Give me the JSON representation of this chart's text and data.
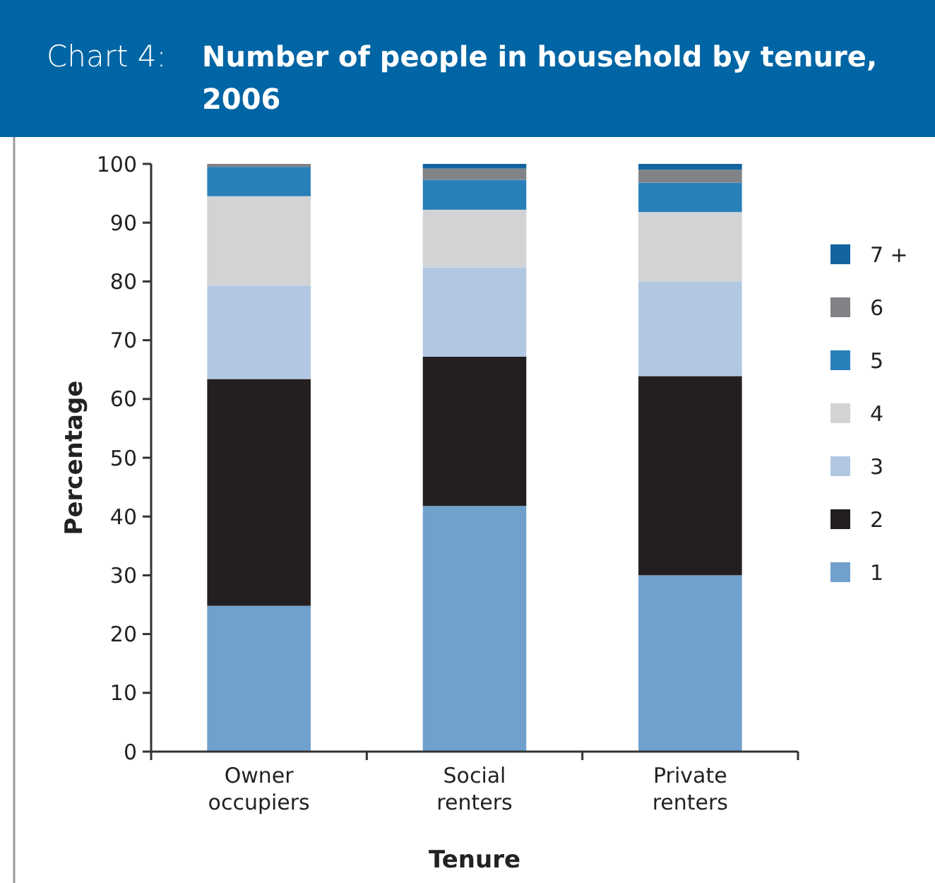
{
  "chart_data": {
    "type": "bar",
    "title": "Number of people in household by tenure, 2006",
    "annotations": [
      "Chart 4:"
    ],
    "xlabel": "Tenure",
    "ylabel": "Percentage",
    "categories": [
      "Owner occupiers",
      "Social renters",
      "Private renters"
    ],
    "stacked": true,
    "ylim": [
      0,
      100
    ],
    "yticks": [
      0,
      10,
      20,
      30,
      40,
      50,
      60,
      70,
      80,
      90,
      100
    ],
    "legend": "right",
    "series": [
      {
        "name": "1",
        "color": "#70a0cc",
        "values": [
          24.8,
          41.8,
          30.0
        ]
      },
      {
        "name": "2",
        "color": "#231f20",
        "values": [
          38.6,
          25.4,
          33.9
        ]
      },
      {
        "name": "3",
        "color": "#b2c8e2",
        "values": [
          15.9,
          15.2,
          16.1
        ]
      },
      {
        "name": "4",
        "color": "#d1d3d4",
        "values": [
          15.2,
          9.8,
          11.8
        ]
      },
      {
        "name": "5",
        "color": "#2980b9",
        "values": [
          5.0,
          5.1,
          5.0
        ]
      },
      {
        "name": "6",
        "color": "#808285",
        "values": [
          0.5,
          1.9,
          2.2
        ]
      },
      {
        "name": "7 +",
        "color": "#1464a0",
        "values": [
          0,
          0.8,
          1.0
        ]
      }
    ]
  }
}
